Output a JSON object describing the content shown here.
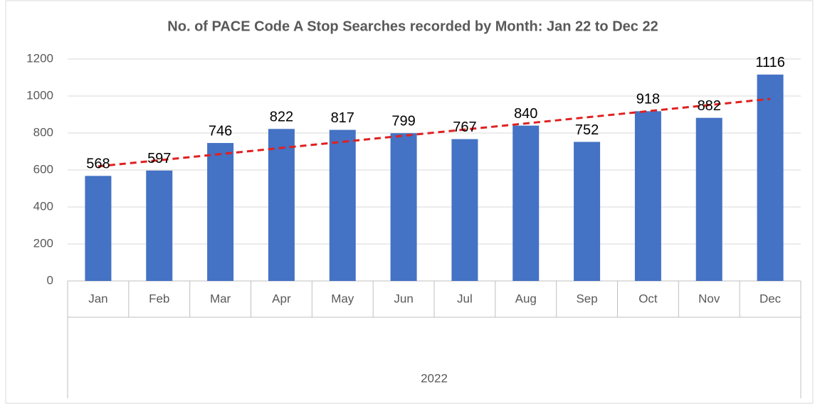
{
  "chart_data": {
    "type": "bar",
    "title": "No. of PACE Code A Stop Searches recorded by Month: Jan 22 to Dec 22",
    "categories": [
      "Jan",
      "Feb",
      "Mar",
      "Apr",
      "May",
      "Jun",
      "Jul",
      "Aug",
      "Sep",
      "Oct",
      "Nov",
      "Dec"
    ],
    "x_group": "2022",
    "values": [
      568,
      597,
      746,
      822,
      817,
      799,
      767,
      840,
      752,
      918,
      882,
      1116
    ],
    "color": "#4472c4",
    "trendline": {
      "type": "linear",
      "color": "#e02020"
    },
    "ylim": [
      0,
      1200
    ],
    "yticks": [
      0,
      200,
      400,
      600,
      800,
      1000,
      1200
    ],
    "grid": true
  }
}
